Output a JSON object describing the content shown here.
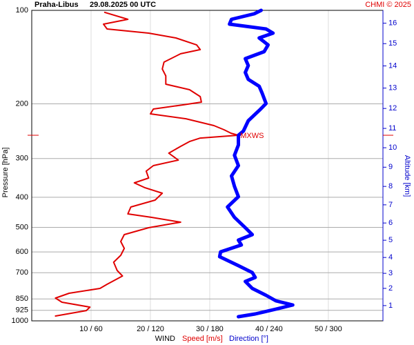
{
  "chart_data": {
    "type": "line",
    "title": "Praha-Libus",
    "subtitle": "29.08.2025 00 UTC",
    "credit": "CHMI © 2025",
    "ylabel": "Pressure [hPa]",
    "y2label": "Altitude [km]",
    "xlabel": "WIND",
    "ylog": true,
    "ylim": [
      1000,
      100
    ],
    "yticks": [
      100,
      200,
      300,
      400,
      500,
      600,
      700,
      850,
      925,
      1000
    ],
    "xlim": [
      0,
      59.2
    ],
    "x2lim": [
      0,
      355.2
    ],
    "xticks": [
      {
        "value": 10,
        "label": "10 / 60"
      },
      {
        "value": 20,
        "label": "20 / 120"
      },
      {
        "value": 30,
        "label": "30 / 180"
      },
      {
        "value": 40,
        "label": "40 / 240"
      },
      {
        "value": 50,
        "label": "50 / 300"
      }
    ],
    "y2ticks": [
      1,
      2,
      3,
      4,
      5,
      6,
      7,
      8,
      9,
      10,
      11,
      12,
      13,
      14,
      15,
      16
    ],
    "y2tick_pressure": [
      893,
      786,
      703,
      625,
      550,
      484,
      423,
      369,
      320,
      277,
      240,
      207,
      178,
      151,
      128,
      110
    ],
    "annotation": {
      "text": "MXWS",
      "pressure": 252.5
    },
    "series": [
      {
        "name": "Speed [m/s]",
        "color": "#e00000",
        "axis": "x",
        "y": [
          101.5,
          106.9,
          110.8,
          114.8,
          118.4,
          122.7,
          129.2,
          133.8,
          138.0,
          146.8,
          154.5,
          162.6,
          172.9,
          180.1,
          189.6,
          197.5,
          201.6,
          207.9,
          215.4,
          223.4,
          235.0,
          242.4,
          248.7,
          252.5,
          257.8,
          264.5,
          274.1,
          288.4,
          303.5,
          316.2,
          329.5,
          346.7,
          359.4,
          372.6,
          388.1,
          408.5,
          429.9,
          452.4,
          464.2,
          481.2,
          501.2,
          527.6,
          555.2,
          584.3,
          614.9,
          647.2,
          688.2,
          717.1,
          762.5,
          786.4,
          815.1,
          844.8,
          871.0,
          903.0,
          926.4,
          964.7
        ],
        "values": [
          12.3,
          16.2,
          12.1,
          12.7,
          19.7,
          24.3,
          27.8,
          28.4,
          25.1,
          22.3,
          22.0,
          22.6,
          22.6,
          26.6,
          28.4,
          28.6,
          25.5,
          20.5,
          20.0,
          26.0,
          30.7,
          32.4,
          33.6,
          34.8,
          28.4,
          26.6,
          25.1,
          23.1,
          24.7,
          20.5,
          19.3,
          19.7,
          17.3,
          19.1,
          22.0,
          20.8,
          16.7,
          16.2,
          20.2,
          25.1,
          19.7,
          15.6,
          15.0,
          15.6,
          15.0,
          13.8,
          14.4,
          15.3,
          12.7,
          11.5,
          6.3,
          4.0,
          5.1,
          9.8,
          9.2,
          4.0
        ]
      },
      {
        "name": "Direction [°]",
        "color": "#0000ff",
        "axis": "x2",
        "y": [
          100,
          102.6,
          106.9,
          110.8,
          114.8,
          118.4,
          122.7,
          129.2,
          135.9,
          143.1,
          150.6,
          158.5,
          166.8,
          175.6,
          184.8,
          199.5,
          210.1,
          226.8,
          244.9,
          252.5,
          271.3,
          292.9,
          316.2,
          341.5,
          368.8,
          398.1,
          429.9,
          464.2,
          501.2,
          527.6,
          549.5,
          569.5,
          599.5,
          621.4,
          664.1,
          699.0,
          724.4,
          746.8,
          786.4,
          827.7,
          862.0,
          888.9,
          916.9,
          950.1,
          969.8
        ],
        "values": [
          232,
          225,
          202,
          200,
          237,
          244,
          230,
          239,
          235,
          216,
          219,
          216,
          219,
          230,
          233,
          237,
          230,
          219,
          214,
          209,
          209,
          205,
          209,
          202,
          205,
          209,
          198,
          205,
          216,
          223,
          209,
          212,
          191,
          190,
          209,
          223,
          226,
          216,
          223,
          237,
          247,
          264,
          247,
          226,
          209
        ]
      }
    ]
  }
}
